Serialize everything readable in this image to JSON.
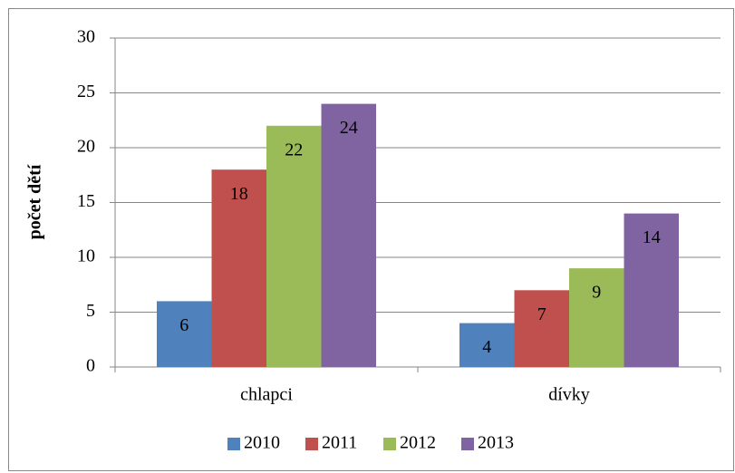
{
  "chart_data": {
    "type": "bar",
    "y_label": "počet dětí",
    "categories": [
      "chlapci",
      "dívky"
    ],
    "series": [
      {
        "name": "2010",
        "color": "#4f81bd",
        "values": [
          6,
          4
        ]
      },
      {
        "name": "2011",
        "color": "#c0504d",
        "values": [
          18,
          7
        ]
      },
      {
        "name": "2012",
        "color": "#9bbb59",
        "values": [
          22,
          9
        ]
      },
      {
        "name": "2013",
        "color": "#8064a2",
        "values": [
          24,
          14
        ]
      }
    ],
    "ylim": [
      0,
      30
    ],
    "yticks": [
      0,
      5,
      10,
      15,
      20,
      25,
      30
    ],
    "grid": true,
    "legend": "bottom"
  }
}
